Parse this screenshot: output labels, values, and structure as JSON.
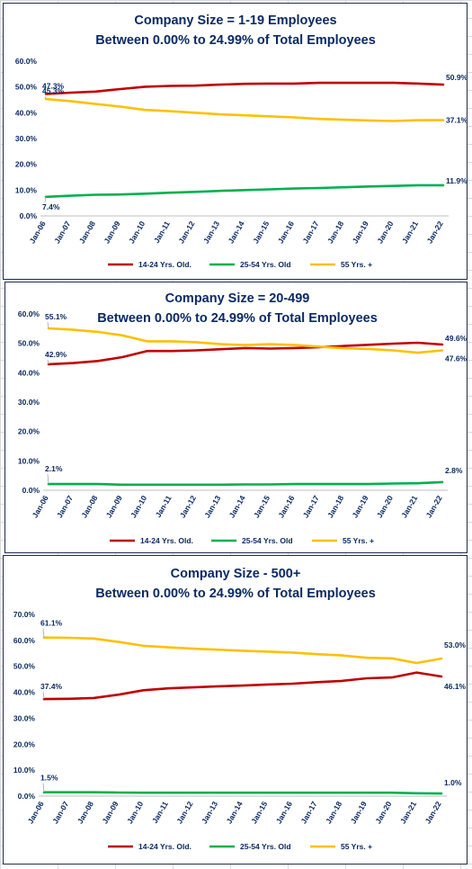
{
  "chart_data": [
    {
      "type": "line",
      "title": "Company Size = 1-19 Employees",
      "subtitle": "Between 0.00% to 24.99% of Total Employees",
      "ylim": [
        0,
        60
      ],
      "yticks": [
        "0.0%",
        "10.0%",
        "20.0%",
        "30.0%",
        "40.0%",
        "50.0%",
        "60.0%"
      ],
      "categories": [
        "Jan-06",
        "Jan-07",
        "Jan-08",
        "Jan-09",
        "Jan-10",
        "Jan-11",
        "Jan-12",
        "Jan-13",
        "Jan-14",
        "Jan-15",
        "Jan-16",
        "Jan-17",
        "Jan-18",
        "Jan-19",
        "Jan-20",
        "Jan-21",
        "Jan-22"
      ],
      "legend_position": "bottom",
      "series": [
        {
          "name": "14-24 Yrs. Old.",
          "color": "#c00000",
          "values": [
            47.3,
            47.8,
            48.2,
            49.2,
            50.1,
            50.4,
            50.5,
            50.9,
            51.2,
            51.3,
            51.3,
            51.6,
            51.6,
            51.6,
            51.6,
            51.3,
            50.9
          ],
          "start_label": "47.3%",
          "end_label": "50.9%"
        },
        {
          "name": "25-54 Yrs. Old",
          "color": "#00b050",
          "values": [
            7.4,
            7.8,
            8.2,
            8.3,
            8.6,
            9.0,
            9.3,
            9.7,
            10.0,
            10.3,
            10.6,
            10.8,
            11.1,
            11.4,
            11.6,
            11.9,
            11.9
          ],
          "start_label": "7.4%",
          "end_label": "11.9%"
        },
        {
          "name": "55 Yrs. +",
          "color": "#ffc000",
          "values": [
            45.3,
            44.5,
            43.4,
            42.4,
            41.1,
            40.6,
            40.0,
            39.4,
            39.0,
            38.6,
            38.2,
            37.6,
            37.3,
            37.0,
            36.8,
            37.1,
            37.1
          ],
          "start_label": "45.3%",
          "end_label": "37.1%"
        }
      ]
    },
    {
      "type": "line",
      "title": "Company Size = 20-499",
      "subtitle": "Between 0.00% to 24.99% of Total Employees",
      "ylim": [
        0,
        60
      ],
      "yticks": [
        "0.0%",
        "10.0%",
        "20.0%",
        "30.0%",
        "40.0%",
        "50.0%",
        "60.0%"
      ],
      "categories": [
        "Jan-06",
        "Jan-07",
        "Jan-08",
        "Jan-09",
        "Jan-10",
        "Jan-11",
        "Jan-12",
        "Jan-13",
        "Jan-14",
        "Jan-15",
        "Jan-16",
        "Jan-17",
        "Jan-18",
        "Jan-19",
        "Jan-20",
        "Jan-21",
        "Jan-22"
      ],
      "legend_position": "bottom",
      "series": [
        {
          "name": "14-24 Yrs. Old.",
          "color": "#c00000",
          "values": [
            42.9,
            43.3,
            44.0,
            45.3,
            47.4,
            47.4,
            47.6,
            48.0,
            48.4,
            48.2,
            48.4,
            48.7,
            49.1,
            49.5,
            49.9,
            50.2,
            49.6
          ],
          "start_label": "42.9%",
          "end_label": "49.6%"
        },
        {
          "name": "25-54 Yrs. Old",
          "color": "#00b050",
          "values": [
            2.1,
            2.1,
            2.1,
            1.9,
            1.9,
            1.9,
            1.9,
            1.9,
            2.0,
            2.0,
            2.1,
            2.1,
            2.1,
            2.1,
            2.3,
            2.4,
            2.8
          ],
          "start_label": "2.1%",
          "end_label": "2.8%"
        },
        {
          "name": "55 Yrs. +",
          "color": "#ffc000",
          "values": [
            55.1,
            54.6,
            53.9,
            52.7,
            50.7,
            50.7,
            50.4,
            49.7,
            49.4,
            49.7,
            49.4,
            48.9,
            48.3,
            48.1,
            47.6,
            46.8,
            47.6
          ],
          "start_label": "55.1%",
          "end_label": "47.6%"
        }
      ]
    },
    {
      "type": "line",
      "title": "Company Size - 500+",
      "subtitle": "Between 0.00% to 24.99% of Total Employees",
      "ylim": [
        0,
        70
      ],
      "yticks": [
        "0.0%",
        "10.0%",
        "20.0%",
        "30.0%",
        "40.0%",
        "50.0%",
        "60.0%",
        "70.0%"
      ],
      "categories": [
        "Jan-06",
        "Jan-07",
        "Jan-08",
        "Jan-09",
        "Jan-10",
        "Jan-11",
        "Jan-12",
        "Jan-13",
        "Jan-14",
        "Jan-15",
        "Jan-16",
        "Jan-17",
        "Jan-18",
        "Jan-19",
        "Jan-20",
        "Jan-21",
        "Jan-22"
      ],
      "legend_position": "bottom",
      "series": [
        {
          "name": "14-24 Yrs. Old.",
          "color": "#c00000",
          "values": [
            37.4,
            37.5,
            37.8,
            39.1,
            40.8,
            41.5,
            41.9,
            42.3,
            42.6,
            43.0,
            43.3,
            43.9,
            44.4,
            45.4,
            45.7,
            47.6,
            46.1
          ],
          "start_label": "37.4%",
          "end_label": "46.1%"
        },
        {
          "name": "25-54 Yrs. Old",
          "color": "#00b050",
          "values": [
            1.5,
            1.5,
            1.5,
            1.4,
            1.3,
            1.3,
            1.3,
            1.3,
            1.3,
            1.3,
            1.3,
            1.3,
            1.3,
            1.3,
            1.3,
            1.1,
            1.0
          ],
          "start_label": "1.5%",
          "end_label": "1.0%"
        },
        {
          "name": "55 Yrs. +",
          "color": "#ffc000",
          "values": [
            61.1,
            61.0,
            60.7,
            59.4,
            57.9,
            57.3,
            56.8,
            56.4,
            56.0,
            55.7,
            55.3,
            54.7,
            54.2,
            53.3,
            53.1,
            51.3,
            53.0
          ],
          "start_label": "61.1%",
          "end_label": "53.0%"
        }
      ]
    }
  ]
}
